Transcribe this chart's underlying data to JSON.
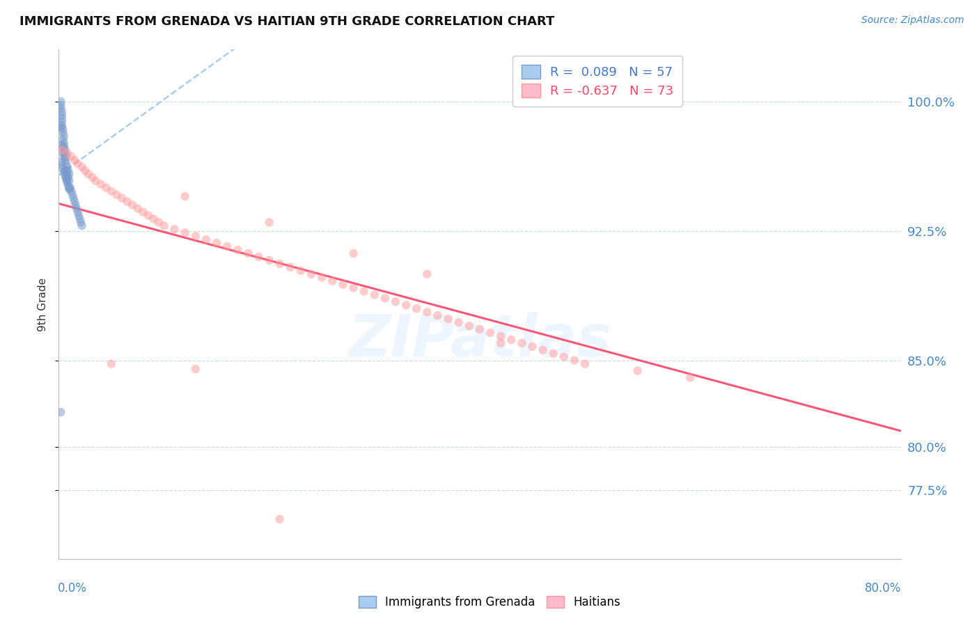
{
  "title": "IMMIGRANTS FROM GRENADA VS HAITIAN 9TH GRADE CORRELATION CHART",
  "source_text": "Source: ZipAtlas.com",
  "ylabel": "9th Grade",
  "ytick_values": [
    0.775,
    0.8,
    0.85,
    0.925,
    1.0
  ],
  "ytick_labels": [
    "77.5%",
    "80.0%",
    "85.0%",
    "92.5%",
    "100.0%"
  ],
  "xmin": 0.0,
  "xmax": 0.8,
  "ymin": 0.735,
  "ymax": 1.03,
  "r_blue": 0.089,
  "n_blue": 57,
  "r_pink": -0.637,
  "n_pink": 73,
  "blue_color": "#7799CC",
  "pink_color": "#FF9999",
  "blue_line_color": "#AACCEE",
  "pink_line_color": "#FF5577",
  "legend_label_blue": "Immigrants from Grenada",
  "legend_label_pink": "Haitians",
  "watermark": "ZIPatlas",
  "blue_x": [
    0.002,
    0.002,
    0.002,
    0.002,
    0.002,
    0.003,
    0.003,
    0.003,
    0.003,
    0.003,
    0.004,
    0.004,
    0.004,
    0.004,
    0.005,
    0.005,
    0.005,
    0.005,
    0.006,
    0.006,
    0.006,
    0.006,
    0.007,
    0.007,
    0.007,
    0.007,
    0.008,
    0.008,
    0.008,
    0.009,
    0.009,
    0.01,
    0.01,
    0.01,
    0.011,
    0.012,
    0.013,
    0.014,
    0.015,
    0.016,
    0.017,
    0.018,
    0.019,
    0.02,
    0.021,
    0.022,
    0.002,
    0.003,
    0.004,
    0.005,
    0.006,
    0.007,
    0.008,
    0.009,
    0.01,
    0.003,
    0.004
  ],
  "blue_y": [
    1.0,
    0.998,
    0.996,
    0.985,
    0.82,
    0.994,
    0.992,
    0.99,
    0.988,
    0.986,
    0.984,
    0.982,
    0.978,
    0.97,
    0.98,
    0.976,
    0.974,
    0.968,
    0.972,
    0.97,
    0.966,
    0.96,
    0.968,
    0.964,
    0.96,
    0.956,
    0.962,
    0.958,
    0.954,
    0.96,
    0.956,
    0.958,
    0.954,
    0.95,
    0.95,
    0.948,
    0.946,
    0.944,
    0.942,
    0.94,
    0.938,
    0.936,
    0.934,
    0.932,
    0.93,
    0.928,
    0.965,
    0.963,
    0.961,
    0.959,
    0.957,
    0.955,
    0.953,
    0.951,
    0.949,
    0.975,
    0.973
  ],
  "pink_x": [
    0.003,
    0.008,
    0.012,
    0.015,
    0.018,
    0.022,
    0.025,
    0.028,
    0.032,
    0.035,
    0.04,
    0.045,
    0.05,
    0.055,
    0.06,
    0.065,
    0.07,
    0.075,
    0.08,
    0.085,
    0.09,
    0.095,
    0.1,
    0.11,
    0.12,
    0.13,
    0.14,
    0.15,
    0.16,
    0.17,
    0.18,
    0.19,
    0.2,
    0.21,
    0.22,
    0.23,
    0.24,
    0.25,
    0.26,
    0.27,
    0.28,
    0.29,
    0.3,
    0.31,
    0.32,
    0.33,
    0.34,
    0.35,
    0.36,
    0.37,
    0.38,
    0.39,
    0.4,
    0.41,
    0.42,
    0.43,
    0.44,
    0.45,
    0.46,
    0.47,
    0.48,
    0.49,
    0.5,
    0.55,
    0.6,
    0.12,
    0.2,
    0.28,
    0.35,
    0.42,
    0.05,
    0.13,
    0.21
  ],
  "pink_y": [
    0.972,
    0.97,
    0.968,
    0.966,
    0.964,
    0.962,
    0.96,
    0.958,
    0.956,
    0.954,
    0.952,
    0.95,
    0.948,
    0.946,
    0.944,
    0.942,
    0.94,
    0.938,
    0.936,
    0.934,
    0.932,
    0.93,
    0.928,
    0.926,
    0.924,
    0.922,
    0.92,
    0.918,
    0.916,
    0.914,
    0.912,
    0.91,
    0.908,
    0.906,
    0.904,
    0.902,
    0.9,
    0.898,
    0.896,
    0.894,
    0.892,
    0.89,
    0.888,
    0.886,
    0.884,
    0.882,
    0.88,
    0.878,
    0.876,
    0.874,
    0.872,
    0.87,
    0.868,
    0.866,
    0.864,
    0.862,
    0.86,
    0.858,
    0.856,
    0.854,
    0.852,
    0.85,
    0.848,
    0.844,
    0.84,
    0.945,
    0.93,
    0.912,
    0.9,
    0.86,
    0.848,
    0.845,
    0.758
  ]
}
